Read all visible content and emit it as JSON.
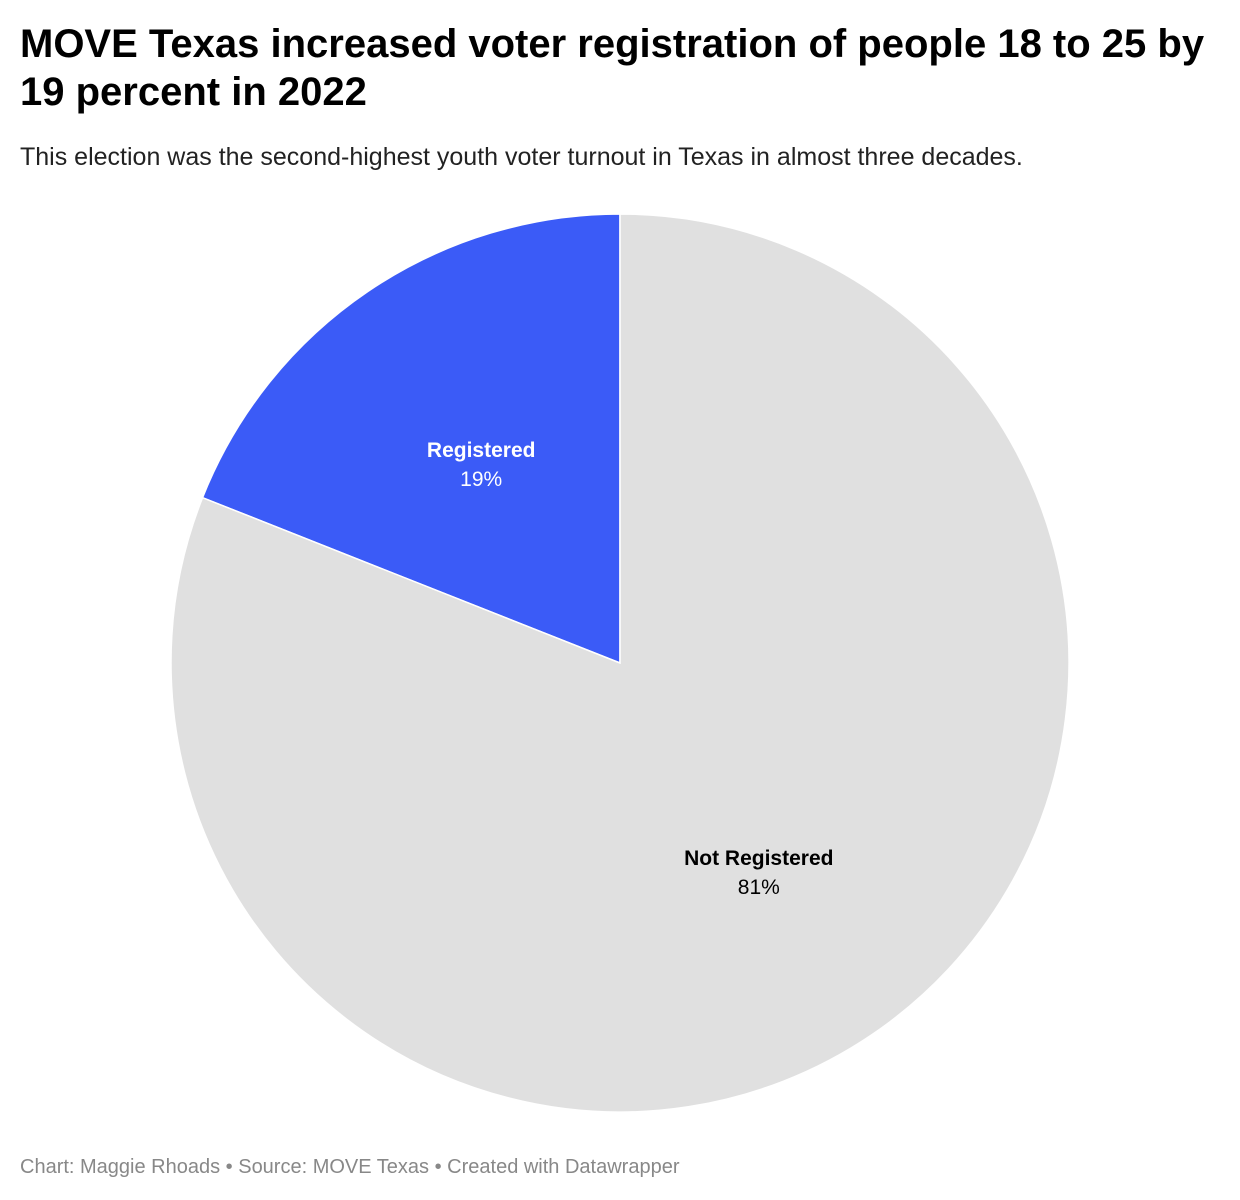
{
  "chart_data": {
    "type": "pie",
    "title": "MOVE Texas increased voter registration of people 18 to 25 by 19 percent in 2022",
    "subtitle": "This election was the second-highest youth voter turnout in Texas in almost three decades.",
    "slices": [
      {
        "label": "Registered",
        "value": 19,
        "display": "19%",
        "color": "#3b5bf7",
        "label_color": "#ffffff"
      },
      {
        "label": "Not Registered",
        "value": 81,
        "display": "81%",
        "color": "#e0e0e0",
        "label_color": "#000000"
      }
    ],
    "start_angle": "12 o'clock",
    "direction": "counterclockwise"
  },
  "footer": {
    "text": "Chart: Maggie Rhoads • Source: MOVE Texas • Created with Datawrapper"
  }
}
